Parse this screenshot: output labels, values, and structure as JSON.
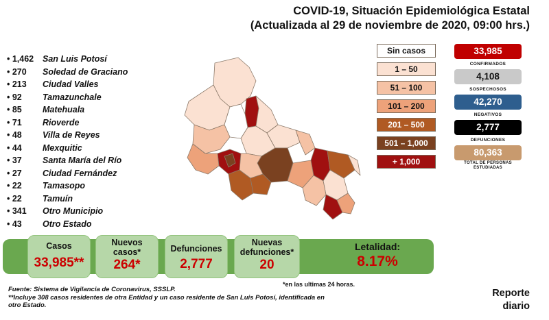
{
  "header": {
    "title_line1": "COVID-19, Situación Epidemiológica Estatal",
    "title_line2": "(Actualizada al 29 de noviembre de 2020, 09:00 hrs.)"
  },
  "municipalities": [
    {
      "count": "• 1,462",
      "name": "San Luis Potosí"
    },
    {
      "count": "• 270",
      "name": "Soledad de Graciano"
    },
    {
      "count": "• 213",
      "name": "Ciudad Valles"
    },
    {
      "count": "• 92",
      "name": "Tamazunchale"
    },
    {
      "count": "• 85",
      "name": "Matehuala"
    },
    {
      "count": "• 71",
      "name": "Rioverde"
    },
    {
      "count": "• 48",
      "name": "Villa de Reyes"
    },
    {
      "count": "• 44",
      "name": "Mexquitic"
    },
    {
      "count": "• 37",
      "name": "Santa María del Río"
    },
    {
      "count": "• 27",
      "name": "Ciudad Fernández"
    },
    {
      "count": "• 22",
      "name": "Tamasopo"
    },
    {
      "count": "• 22",
      "name": "Tamuín"
    },
    {
      "count": "• 341",
      "name": "Otro Municipio"
    },
    {
      "count": "• 43",
      "name": "Otro Estado"
    }
  ],
  "legend": [
    {
      "label": "Sin casos",
      "color": "#ffffff",
      "text_color": "#111111"
    },
    {
      "label": "1 – 50",
      "color": "#fbe1d2",
      "text_color": "#111111"
    },
    {
      "label": "51 – 100",
      "color": "#f5c2a5",
      "text_color": "#111111"
    },
    {
      "label": "101 – 200",
      "color": "#eda27a",
      "text_color": "#111111"
    },
    {
      "label": "201 – 500",
      "color": "#b05a23",
      "text_color": "#ffffff"
    },
    {
      "label": "501 – 1,000",
      "color": "#7a4120",
      "text_color": "#ffffff"
    },
    {
      "label": "+ 1,000",
      "color": "#a01010",
      "text_color": "#ffffff"
    }
  ],
  "stats": [
    {
      "value": "33,985",
      "label": "CONFIRMADOS",
      "bg": "#c00000",
      "fg": "#ffffff"
    },
    {
      "value": "4,108",
      "label": "SOSPECHOSOS",
      "bg": "#c9c9c9",
      "fg": "#111111"
    },
    {
      "value": "42,270",
      "label": "NEGATIVOS",
      "bg": "#2e5e8e",
      "fg": "#ffffff"
    },
    {
      "value": "2,777",
      "label": "DEFUNCIONES",
      "bg": "#000000",
      "fg": "#ffffff"
    },
    {
      "value": "80,363",
      "label": "TOTAL DE PERSONAS ESTUDIADAS",
      "bg": "#c89a6e",
      "fg": "#ffffff"
    }
  ],
  "summary": {
    "casos_label": "Casos",
    "casos_value": "33,985**",
    "nuevos_label": "Nuevos casos*",
    "nuevos_value": "264*",
    "defunciones_label": "Defunciones",
    "defunciones_value": "2,777",
    "nuevas_def_label": "Nuevas defunciones*",
    "nuevas_def_value": "20",
    "letalidad_label": "Letalidad:",
    "letalidad_value": "8.17%"
  },
  "footer": {
    "note_24h": "*en las ultimas 24 horas.",
    "fuente": "Fuente: Sistema de Vigilancia de Coronavirus, SSSLP.",
    "nota": "**Incluye 308 casos residentes de otra Entidad y un caso residente de San Luis Potosí, identificada en otro Estado.",
    "reporte": "Reporte diario"
  }
}
